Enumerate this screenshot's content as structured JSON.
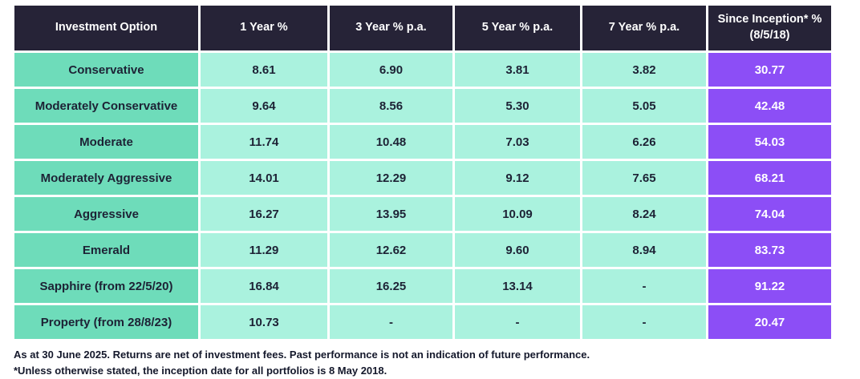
{
  "table": {
    "headers": [
      "Investment Option",
      "1 Year %",
      "3 Year % p.a.",
      "5 Year % p.a.",
      "7 Year % p.a.",
      "Since Inception* %\n(8/5/18)"
    ],
    "rows": [
      [
        "Conservative",
        "8.61",
        "6.90",
        "3.81",
        "3.82",
        "30.77"
      ],
      [
        "Moderately Conservative",
        "9.64",
        "8.56",
        "5.30",
        "5.05",
        "42.48"
      ],
      [
        "Moderate",
        "11.74",
        "10.48",
        "7.03",
        "6.26",
        "54.03"
      ],
      [
        "Moderately Aggressive",
        "14.01",
        "12.29",
        "9.12",
        "7.65",
        "68.21"
      ],
      [
        "Aggressive",
        "16.27",
        "13.95",
        "10.09",
        "8.24",
        "74.04"
      ],
      [
        "Emerald",
        "11.29",
        "12.62",
        "9.60",
        "8.94",
        "83.73"
      ],
      [
        "Sapphire (from 22/5/20)",
        "16.84",
        "16.25",
        "13.14",
        "-",
        "91.22"
      ],
      [
        "Property (from 28/8/23)",
        "10.73",
        "-",
        "-",
        "-",
        "20.47"
      ]
    ]
  },
  "notes": {
    "line1": "As at 30 June 2025. Returns are net of investment fees. Past performance is not an indication of future performance.",
    "line2": "*Unless otherwise stated, the inception date for all portfolios is 8 May 2018."
  },
  "colors": {
    "header_bg": "#262337",
    "header_text": "#ffffff",
    "label_cell_bg": "#6edcba",
    "value_cell_bg": "#aaf2de",
    "inception_cell_bg": "#8c4ef6",
    "inception_text": "#ffffff",
    "body_text": "#1d2235",
    "cell_border": "#ffffff"
  },
  "chart_data": {
    "type": "table",
    "title": "Investment option returns",
    "columns": [
      "Investment Option",
      "1 Year %",
      "3 Year % p.a.",
      "5 Year % p.a.",
      "7 Year % p.a.",
      "Since Inception* % (8/5/18)"
    ],
    "rows": [
      [
        "Conservative",
        8.61,
        6.9,
        3.81,
        3.82,
        30.77
      ],
      [
        "Moderately Conservative",
        9.64,
        8.56,
        5.3,
        5.05,
        42.48
      ],
      [
        "Moderate",
        11.74,
        10.48,
        7.03,
        6.26,
        54.03
      ],
      [
        "Moderately Aggressive",
        14.01,
        12.29,
        9.12,
        7.65,
        68.21
      ],
      [
        "Aggressive",
        16.27,
        13.95,
        10.09,
        8.24,
        74.04
      ],
      [
        "Emerald",
        11.29,
        12.62,
        9.6,
        8.94,
        83.73
      ],
      [
        "Sapphire (from 22/5/20)",
        16.84,
        16.25,
        13.14,
        null,
        91.22
      ],
      [
        "Property (from 28/8/23)",
        10.73,
        null,
        null,
        null,
        20.47
      ]
    ],
    "footnotes": [
      "As at 30 June 2025. Returns are net of investment fees. Past performance is not an indication of future performance.",
      "*Unless otherwise stated, the inception date for all portfolios is 8 May 2018."
    ]
  }
}
